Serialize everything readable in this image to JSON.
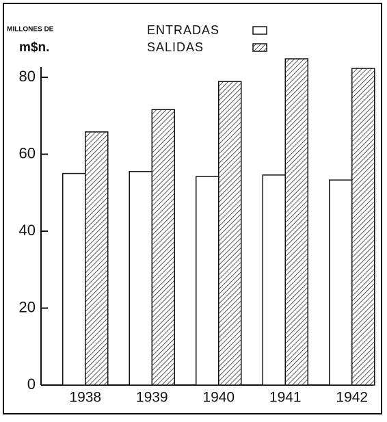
{
  "chart_data": {
    "type": "bar",
    "y_label_lines": [
      "MILLONES DE",
      "m$n."
    ],
    "categories": [
      "1938",
      "1939",
      "1940",
      "1941",
      "1942"
    ],
    "series": [
      {
        "name": "ENTRADAS",
        "color": "#ffffff",
        "pattern": "none",
        "values": [
          55,
          55.5,
          54.2,
          54.6,
          53.3
        ]
      },
      {
        "name": "SALIDAS",
        "color": "#ffffff",
        "pattern": "hatch",
        "values": [
          65.8,
          71.6,
          78.9,
          84.8,
          82.3
        ]
      }
    ],
    "ylim": [
      0,
      80
    ],
    "yticks": [
      0,
      20,
      40,
      60,
      80
    ],
    "grid": false
  }
}
